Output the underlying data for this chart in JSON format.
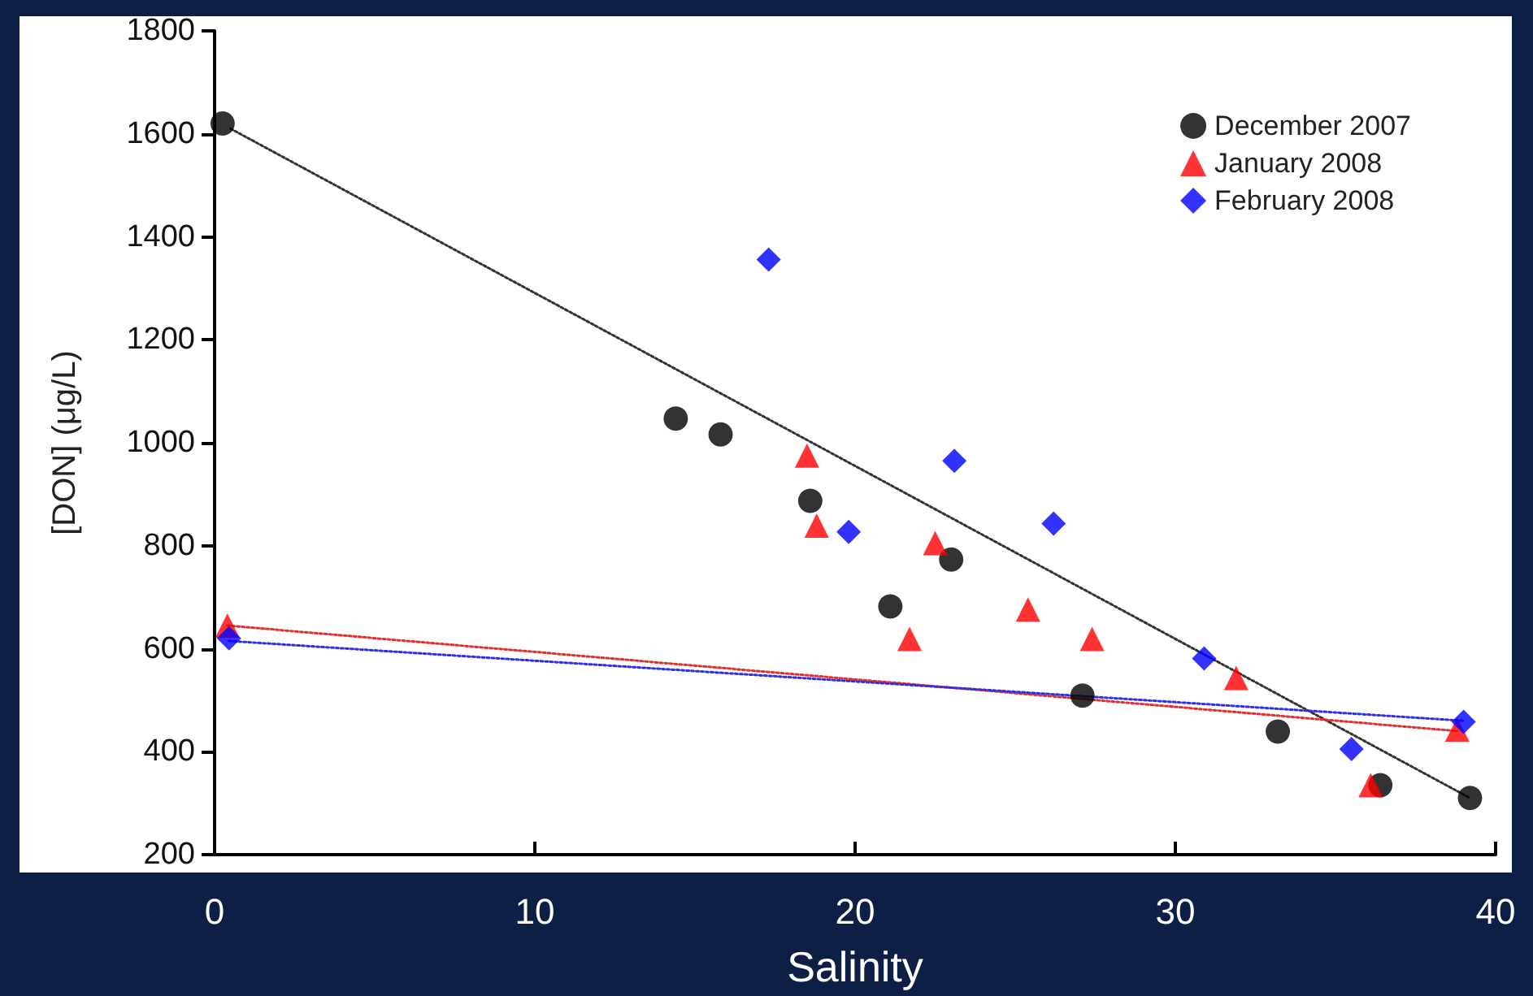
{
  "chart_data": {
    "type": "scatter",
    "xlabel": "Salinity",
    "ylabel": "[DON] (μg/L)",
    "xlim": [
      0,
      40
    ],
    "xticks": [
      0,
      10,
      20,
      30,
      40
    ],
    "ylim": [
      200,
      1800
    ],
    "yticks": [
      200,
      400,
      600,
      800,
      1000,
      1200,
      1400,
      1600,
      1800
    ],
    "grid": false,
    "legend": "top right",
    "series": [
      {
        "name": "December 2007",
        "color": "#000000",
        "marker": "circle",
        "x": [
          0.25,
          14.4,
          15.8,
          18.6,
          21.1,
          23.0,
          27.1,
          33.2,
          36.4,
          39.2
        ],
        "values": [
          1620,
          1047,
          1016,
          887,
          682,
          773,
          509,
          439,
          335,
          310
        ]
      },
      {
        "name": "January 2008",
        "color": "#ff0000",
        "marker": "triangle",
        "x": [
          0.4,
          18.5,
          18.8,
          21.7,
          22.5,
          25.4,
          27.4,
          31.9,
          36.1,
          38.8
        ],
        "values": [
          645,
          975,
          839,
          619,
          805,
          676,
          619,
          543,
          335,
          443
        ]
      },
      {
        "name": "February 2008",
        "color": "#0000ff",
        "marker": "diamond",
        "x": [
          0.45,
          17.3,
          19.8,
          23.1,
          26.2,
          30.9,
          35.5,
          39.0
        ],
        "values": [
          620,
          1356,
          827,
          965,
          843,
          581,
          405,
          458
        ]
      },
      {
        "type": "line",
        "color": "#333333",
        "line_style": "dotted",
        "marker": "none",
        "x": [
          0.5,
          39.2
        ],
        "values": [
          1610,
          310
        ]
      },
      {
        "type": "line",
        "color": "#e03030",
        "line_style": "dotted",
        "marker": "none",
        "x": [
          0.4,
          38.8
        ],
        "values": [
          645,
          440
        ]
      },
      {
        "type": "line",
        "color": "#3030e0",
        "line_style": "dotted",
        "marker": "none",
        "x": [
          0.45,
          39.0
        ],
        "values": [
          615,
          460
        ]
      }
    ]
  }
}
